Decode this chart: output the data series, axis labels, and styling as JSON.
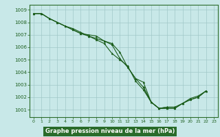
{
  "title": "Graphe pression niveau de la mer (hPa)",
  "bg_color": "#c8e8e8",
  "plot_bg_color": "#c8e8e8",
  "label_bg_color": "#2a6b2a",
  "label_text_color": "#ffffff",
  "grid_color": "#a0c8c8",
  "line_color": "#1a5c1a",
  "marker_color": "#1a5c1a",
  "spine_color": "#2a6b2a",
  "xlim": [
    -0.5,
    23.5
  ],
  "ylim": [
    1000.4,
    1009.4
  ],
  "yticks": [
    1001,
    1002,
    1003,
    1004,
    1005,
    1006,
    1007,
    1008,
    1009
  ],
  "xticks": [
    0,
    1,
    2,
    3,
    4,
    5,
    6,
    7,
    8,
    9,
    10,
    11,
    12,
    13,
    14,
    15,
    16,
    17,
    18,
    19,
    20,
    21,
    22,
    23
  ],
  "xlabels": [
    "0",
    "1",
    "2",
    "3",
    "4",
    "5",
    "6",
    "7",
    "8",
    "9",
    "10",
    "11",
    "12",
    "13",
    "14",
    "15",
    "16",
    "17",
    "18",
    "19",
    "20",
    "21",
    "22",
    "23"
  ],
  "series": [
    [
      1008.7,
      1008.7,
      1008.3,
      1008.0,
      1007.7,
      1007.5,
      1007.2,
      1006.9,
      1006.6,
      1006.3,
      1005.5,
      1005.0,
      1004.5,
      1003.3,
      1002.6,
      1001.6,
      1001.1,
      1001.1,
      1001.1,
      1001.5,
      1001.9,
      1002.1,
      1002.5,
      null
    ],
    [
      1008.7,
      1008.7,
      1008.3,
      1008.0,
      1007.7,
      1007.4,
      1007.1,
      1006.9,
      1006.7,
      1006.5,
      1006.3,
      1005.6,
      1004.4,
      1003.5,
      1003.2,
      1001.6,
      1001.1,
      1001.1,
      1001.1,
      1001.5,
      1001.8,
      1002.0,
      1002.5,
      null
    ],
    [
      1008.7,
      1008.7,
      1008.3,
      1008.0,
      1007.7,
      1007.4,
      1007.1,
      1007.0,
      1006.9,
      1006.5,
      1006.2,
      1005.1,
      1004.4,
      1003.5,
      1002.8,
      1001.6,
      1001.1,
      1001.2,
      1001.2,
      null,
      null,
      null,
      null,
      null
    ],
    [
      null,
      null,
      null,
      null,
      null,
      null,
      null,
      null,
      null,
      null,
      null,
      null,
      null,
      null,
      1002.8,
      1001.6,
      1001.1,
      1001.2,
      1001.2,
      1001.5,
      1001.8,
      1002.0,
      1002.5,
      null
    ]
  ]
}
